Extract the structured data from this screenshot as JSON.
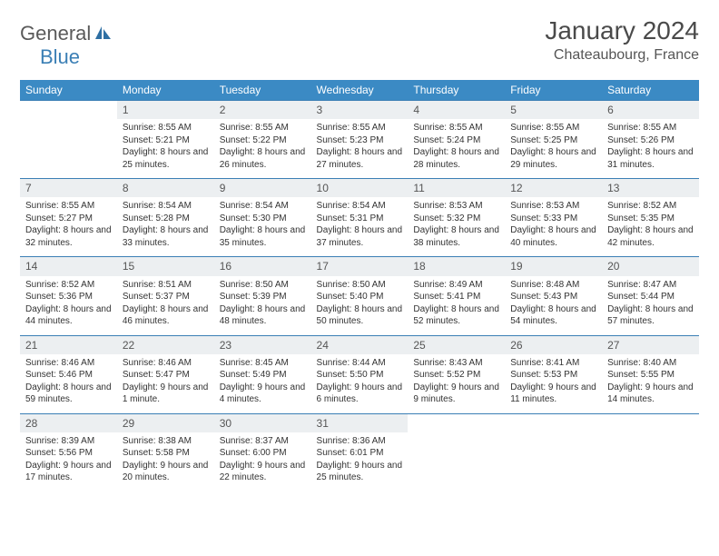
{
  "logo": {
    "text1": "General",
    "text2": "Blue"
  },
  "title": "January 2024",
  "location": "Chateaubourg, France",
  "colors": {
    "header_bg": "#3b8ac4",
    "header_fg": "#ffffff",
    "daynum_bg": "#eceff1",
    "rule": "#3b7fb5",
    "logo_gray": "#5a5a5a",
    "logo_blue": "#3b7fb5"
  },
  "weekdays": [
    "Sunday",
    "Monday",
    "Tuesday",
    "Wednesday",
    "Thursday",
    "Friday",
    "Saturday"
  ],
  "weeks": [
    [
      {
        "n": "",
        "sr": "",
        "ss": "",
        "dl": ""
      },
      {
        "n": "1",
        "sr": "Sunrise: 8:55 AM",
        "ss": "Sunset: 5:21 PM",
        "dl": "Daylight: 8 hours and 25 minutes."
      },
      {
        "n": "2",
        "sr": "Sunrise: 8:55 AM",
        "ss": "Sunset: 5:22 PM",
        "dl": "Daylight: 8 hours and 26 minutes."
      },
      {
        "n": "3",
        "sr": "Sunrise: 8:55 AM",
        "ss": "Sunset: 5:23 PM",
        "dl": "Daylight: 8 hours and 27 minutes."
      },
      {
        "n": "4",
        "sr": "Sunrise: 8:55 AM",
        "ss": "Sunset: 5:24 PM",
        "dl": "Daylight: 8 hours and 28 minutes."
      },
      {
        "n": "5",
        "sr": "Sunrise: 8:55 AM",
        "ss": "Sunset: 5:25 PM",
        "dl": "Daylight: 8 hours and 29 minutes."
      },
      {
        "n": "6",
        "sr": "Sunrise: 8:55 AM",
        "ss": "Sunset: 5:26 PM",
        "dl": "Daylight: 8 hours and 31 minutes."
      }
    ],
    [
      {
        "n": "7",
        "sr": "Sunrise: 8:55 AM",
        "ss": "Sunset: 5:27 PM",
        "dl": "Daylight: 8 hours and 32 minutes."
      },
      {
        "n": "8",
        "sr": "Sunrise: 8:54 AM",
        "ss": "Sunset: 5:28 PM",
        "dl": "Daylight: 8 hours and 33 minutes."
      },
      {
        "n": "9",
        "sr": "Sunrise: 8:54 AM",
        "ss": "Sunset: 5:30 PM",
        "dl": "Daylight: 8 hours and 35 minutes."
      },
      {
        "n": "10",
        "sr": "Sunrise: 8:54 AM",
        "ss": "Sunset: 5:31 PM",
        "dl": "Daylight: 8 hours and 37 minutes."
      },
      {
        "n": "11",
        "sr": "Sunrise: 8:53 AM",
        "ss": "Sunset: 5:32 PM",
        "dl": "Daylight: 8 hours and 38 minutes."
      },
      {
        "n": "12",
        "sr": "Sunrise: 8:53 AM",
        "ss": "Sunset: 5:33 PM",
        "dl": "Daylight: 8 hours and 40 minutes."
      },
      {
        "n": "13",
        "sr": "Sunrise: 8:52 AM",
        "ss": "Sunset: 5:35 PM",
        "dl": "Daylight: 8 hours and 42 minutes."
      }
    ],
    [
      {
        "n": "14",
        "sr": "Sunrise: 8:52 AM",
        "ss": "Sunset: 5:36 PM",
        "dl": "Daylight: 8 hours and 44 minutes."
      },
      {
        "n": "15",
        "sr": "Sunrise: 8:51 AM",
        "ss": "Sunset: 5:37 PM",
        "dl": "Daylight: 8 hours and 46 minutes."
      },
      {
        "n": "16",
        "sr": "Sunrise: 8:50 AM",
        "ss": "Sunset: 5:39 PM",
        "dl": "Daylight: 8 hours and 48 minutes."
      },
      {
        "n": "17",
        "sr": "Sunrise: 8:50 AM",
        "ss": "Sunset: 5:40 PM",
        "dl": "Daylight: 8 hours and 50 minutes."
      },
      {
        "n": "18",
        "sr": "Sunrise: 8:49 AM",
        "ss": "Sunset: 5:41 PM",
        "dl": "Daylight: 8 hours and 52 minutes."
      },
      {
        "n": "19",
        "sr": "Sunrise: 8:48 AM",
        "ss": "Sunset: 5:43 PM",
        "dl": "Daylight: 8 hours and 54 minutes."
      },
      {
        "n": "20",
        "sr": "Sunrise: 8:47 AM",
        "ss": "Sunset: 5:44 PM",
        "dl": "Daylight: 8 hours and 57 minutes."
      }
    ],
    [
      {
        "n": "21",
        "sr": "Sunrise: 8:46 AM",
        "ss": "Sunset: 5:46 PM",
        "dl": "Daylight: 8 hours and 59 minutes."
      },
      {
        "n": "22",
        "sr": "Sunrise: 8:46 AM",
        "ss": "Sunset: 5:47 PM",
        "dl": "Daylight: 9 hours and 1 minute."
      },
      {
        "n": "23",
        "sr": "Sunrise: 8:45 AM",
        "ss": "Sunset: 5:49 PM",
        "dl": "Daylight: 9 hours and 4 minutes."
      },
      {
        "n": "24",
        "sr": "Sunrise: 8:44 AM",
        "ss": "Sunset: 5:50 PM",
        "dl": "Daylight: 9 hours and 6 minutes."
      },
      {
        "n": "25",
        "sr": "Sunrise: 8:43 AM",
        "ss": "Sunset: 5:52 PM",
        "dl": "Daylight: 9 hours and 9 minutes."
      },
      {
        "n": "26",
        "sr": "Sunrise: 8:41 AM",
        "ss": "Sunset: 5:53 PM",
        "dl": "Daylight: 9 hours and 11 minutes."
      },
      {
        "n": "27",
        "sr": "Sunrise: 8:40 AM",
        "ss": "Sunset: 5:55 PM",
        "dl": "Daylight: 9 hours and 14 minutes."
      }
    ],
    [
      {
        "n": "28",
        "sr": "Sunrise: 8:39 AM",
        "ss": "Sunset: 5:56 PM",
        "dl": "Daylight: 9 hours and 17 minutes."
      },
      {
        "n": "29",
        "sr": "Sunrise: 8:38 AM",
        "ss": "Sunset: 5:58 PM",
        "dl": "Daylight: 9 hours and 20 minutes."
      },
      {
        "n": "30",
        "sr": "Sunrise: 8:37 AM",
        "ss": "Sunset: 6:00 PM",
        "dl": "Daylight: 9 hours and 22 minutes."
      },
      {
        "n": "31",
        "sr": "Sunrise: 8:36 AM",
        "ss": "Sunset: 6:01 PM",
        "dl": "Daylight: 9 hours and 25 minutes."
      },
      {
        "n": "",
        "sr": "",
        "ss": "",
        "dl": ""
      },
      {
        "n": "",
        "sr": "",
        "ss": "",
        "dl": ""
      },
      {
        "n": "",
        "sr": "",
        "ss": "",
        "dl": ""
      }
    ]
  ]
}
